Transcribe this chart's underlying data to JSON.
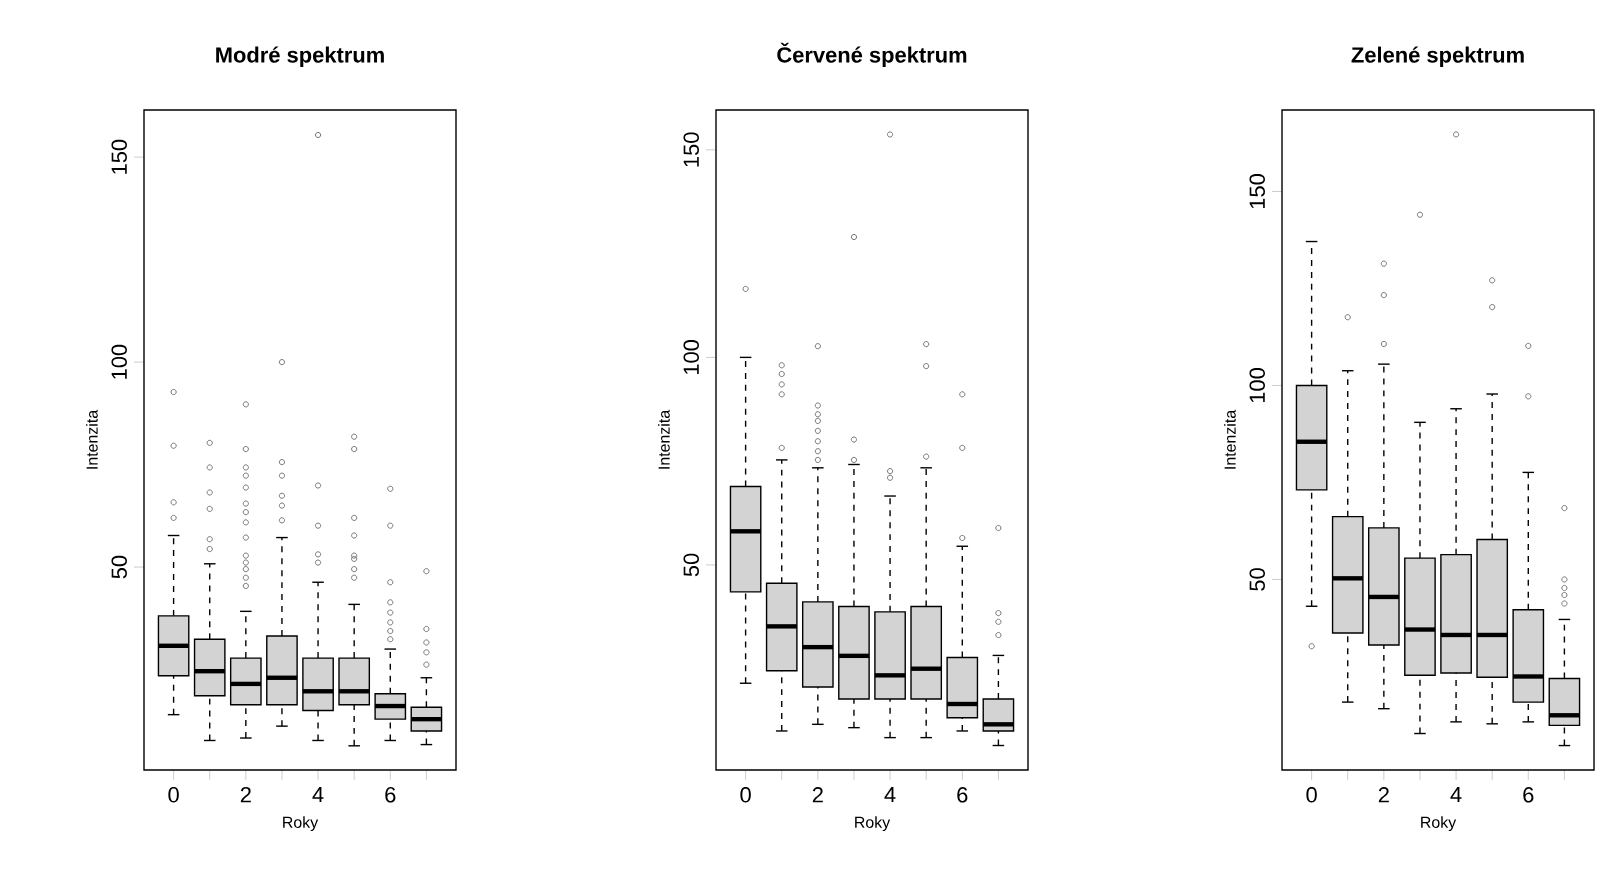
{
  "chart_data": [
    {
      "type": "box",
      "title": "Modré spektrum",
      "xlabel": "Roky",
      "ylabel": "Intenzita",
      "categories": [
        "0",
        null,
        "2",
        null,
        "4",
        null,
        "6",
        null
      ],
      "ylim": [
        0.5,
        161.5
      ],
      "yticks": [
        50,
        100,
        150
      ],
      "series": [
        {
          "color": "#d3d3d3",
          "boxes": [
            {
              "low": 14.0,
              "q1": 23.5,
              "median": 30.8,
              "q3": 38.1,
              "high": 57.7,
              "outliers": [
                62,
                65.8,
                79.6,
                92.7
              ]
            },
            {
              "low": 7.7,
              "q1": 18.6,
              "median": 24.6,
              "q3": 32.4,
              "high": 50.8,
              "outliers": [
                54.4,
                56.8,
                64.2,
                68.2,
                74.3,
                80.3
              ]
            },
            {
              "low": 8.3,
              "q1": 16.4,
              "median": 21.5,
              "q3": 27.8,
              "high": 39.2,
              "outliers": [
                45.4,
                47.4,
                49.5,
                51.1,
                52.8,
                57.2,
                60.9,
                63.4,
                65.5,
                69.4,
                72.3,
                74.3,
                78.8,
                89.7
              ]
            },
            {
              "low": 11.2,
              "q1": 16.4,
              "median": 23.0,
              "q3": 33.2,
              "high": 57.2,
              "outliers": [
                61.4,
                65,
                67.4,
                72.3,
                75.6,
                100
              ]
            },
            {
              "low": 7.7,
              "q1": 15.0,
              "median": 19.7,
              "q3": 27.8,
              "high": 46.3,
              "outliers": [
                51.1,
                53.1,
                60.1,
                69.9,
                155.4
              ]
            },
            {
              "low": 6.4,
              "q1": 16.4,
              "median": 19.7,
              "q3": 27.8,
              "high": 40.9,
              "outliers": [
                47.4,
                49.5,
                52,
                52.8,
                57.7,
                62,
                78.8,
                81.8
              ]
            },
            {
              "low": 7.7,
              "q1": 12.9,
              "median": 16.1,
              "q3": 19.1,
              "high": 30.0,
              "outliers": [
                32.4,
                34.4,
                36.5,
                38.9,
                41.4,
                46.3,
                60.1,
                69.1
              ]
            },
            {
              "low": 6.7,
              "q1": 10.0,
              "median": 12.9,
              "q3": 15.8,
              "high": 23.0,
              "outliers": [
                26.2,
                29.2,
                31.6,
                34.9,
                49
              ]
            }
          ]
        }
      ]
    },
    {
      "type": "box",
      "title": "Červené spektrum",
      "xlabel": "Roky",
      "ylabel": "Intenzita",
      "categories": [
        "0",
        null,
        "2",
        null,
        "4",
        null,
        "6",
        null
      ],
      "ylim": [
        0.6,
        159.6
      ],
      "yticks": [
        50,
        100,
        150
      ],
      "series": [
        {
          "color": "#d3d3d3",
          "boxes": [
            {
              "low": 21.5,
              "q1": 43.5,
              "median": 58.1,
              "q3": 68.9,
              "high": 100,
              "outliers": [
                116.5
              ]
            },
            {
              "low": 10.0,
              "q1": 24.5,
              "median": 35.2,
              "q3": 45.6,
              "high": 75.3,
              "outliers": [
                78.2,
                91.1,
                93.5,
                96,
                98.1
              ]
            },
            {
              "low": 11.6,
              "q1": 20.6,
              "median": 30.2,
              "q3": 41.1,
              "high": 73.4,
              "outliers": [
                75.3,
                77.4,
                79.8,
                82.3,
                84.7,
                86.3,
                88.4,
                102.7
              ]
            },
            {
              "low": 10.8,
              "q1": 17.7,
              "median": 28.1,
              "q3": 40,
              "high": 74.2,
              "outliers": [
                75.3,
                80.2,
                129
              ]
            },
            {
              "low": 8.4,
              "q1": 17.7,
              "median": 23.4,
              "q3": 38.7,
              "high": 66.6,
              "outliers": [
                71,
                72.6,
                153.7
              ]
            },
            {
              "low": 8.4,
              "q1": 17.7,
              "median": 25,
              "q3": 40,
              "high": 73.4,
              "outliers": [
                76.1,
                97.9,
                103.2
              ]
            },
            {
              "low": 10,
              "q1": 13.2,
              "median": 16.5,
              "q3": 27.7,
              "high": 54.5,
              "outliers": [
                56.5,
                78.2,
                91.1
              ]
            },
            {
              "low": 6.5,
              "q1": 10,
              "median": 11.6,
              "q3": 17.7,
              "high": 28.2,
              "outliers": [
                33.1,
                36.3,
                38.4,
                58.9
              ]
            }
          ]
        }
      ]
    },
    {
      "type": "box",
      "title": "Zelené spektrum",
      "xlabel": "Roky",
      "ylabel": "Intenzita",
      "categories": [
        "0",
        null,
        "2",
        null,
        "4",
        null,
        "6",
        null
      ],
      "ylim": [
        0.9,
        171
      ],
      "yticks": [
        50,
        100,
        150
      ],
      "series": [
        {
          "color": "#d3d3d3",
          "boxes": [
            {
              "low": 43.1,
              "q1": 73.1,
              "median": 85.5,
              "q3": 100,
              "high": 137.1,
              "outliers": [
                32.8
              ]
            },
            {
              "low": 18.4,
              "q1": 36.2,
              "median": 50.3,
              "q3": 66.2,
              "high": 103.8,
              "outliers": [
                117.6
              ]
            },
            {
              "low": 16.7,
              "q1": 33.1,
              "median": 45.5,
              "q3": 63.3,
              "high": 105.5,
              "outliers": [
                110.7,
                123.3,
                131.4
              ]
            },
            {
              "low": 10.3,
              "q1": 25.3,
              "median": 37.1,
              "q3": 55.5,
              "high": 90.5,
              "outliers": [
                144
              ]
            },
            {
              "low": 13.3,
              "q1": 25.9,
              "median": 35.7,
              "q3": 56.4,
              "high": 94,
              "outliers": [
                164.7
              ]
            },
            {
              "low": 12.8,
              "q1": 24.8,
              "median": 35.7,
              "q3": 60.3,
              "high": 97.8,
              "outliers": [
                120.2,
                127.1
              ]
            },
            {
              "low": 13.3,
              "q1": 18.4,
              "median": 25,
              "q3": 42.2,
              "high": 77.6,
              "outliers": [
                97.2,
                110.2
              ]
            },
            {
              "low": 7.2,
              "q1": 12.4,
              "median": 15,
              "q3": 24.5,
              "high": 39.7,
              "outliers": [
                43.8,
                46,
                47.8,
                50,
                68.4
              ]
            }
          ]
        }
      ]
    }
  ]
}
